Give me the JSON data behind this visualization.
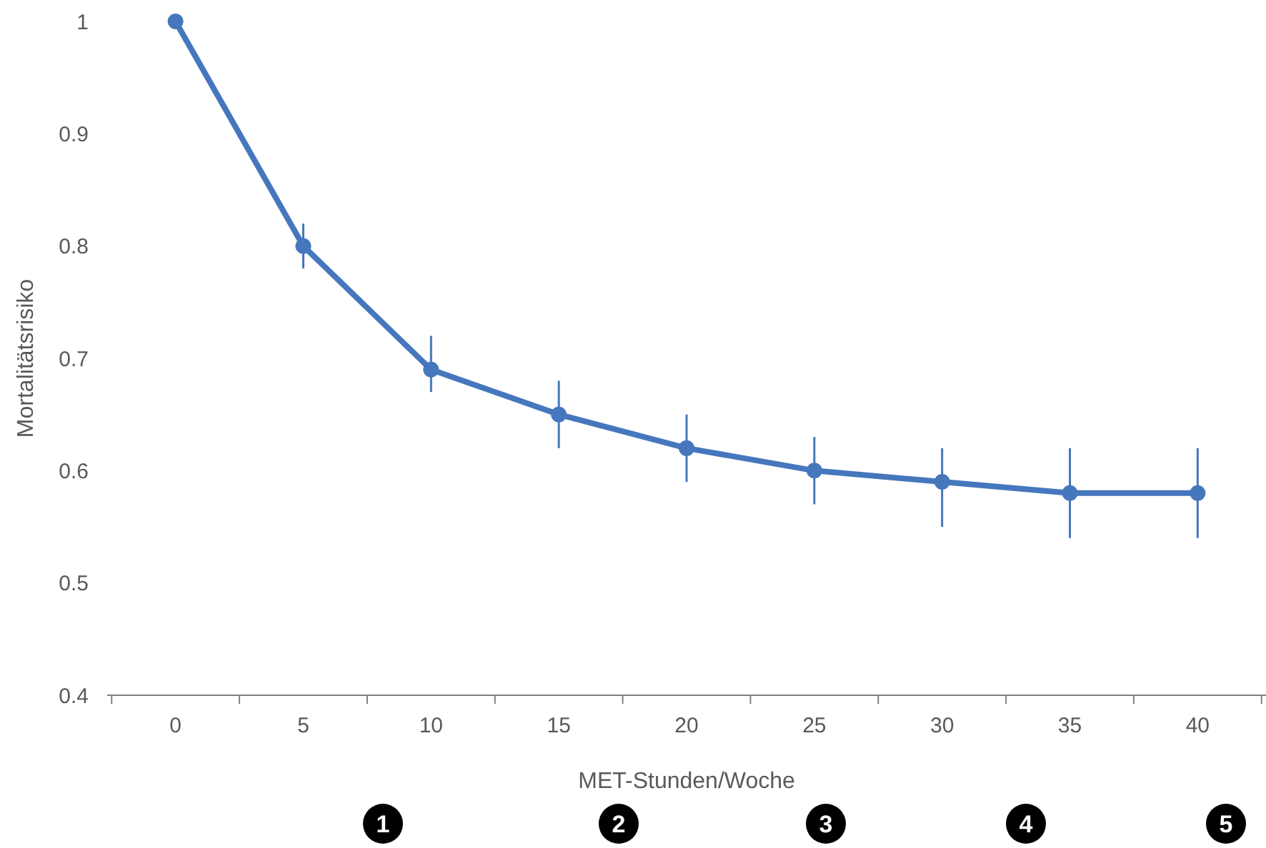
{
  "chart_data": {
    "type": "line",
    "xlabel": "MET-Stunden/Woche",
    "ylabel": "Mortalitätsrisiko",
    "categories": [
      "0",
      "5",
      "10",
      "15",
      "20",
      "25",
      "30",
      "35",
      "40"
    ],
    "series": [
      {
        "color": "#4677bd",
        "values": [
          1,
          0.8,
          0.69,
          0.65,
          0.62,
          0.6,
          0.59,
          0.58,
          0.58
        ],
        "errors": [
          null,
          [
            0.78,
            0.82
          ],
          [
            0.67,
            0.72
          ],
          [
            0.62,
            0.68
          ],
          [
            0.59,
            0.65
          ],
          [
            0.57,
            0.63
          ],
          [
            0.55,
            0.62
          ],
          [
            0.54,
            0.62
          ],
          [
            0.54,
            0.62
          ]
        ]
      }
    ],
    "ylim": [
      0.4,
      1
    ],
    "yticks": [
      0.4,
      0.5,
      0.6,
      0.7,
      0.8,
      0.9,
      1
    ],
    "grid": false,
    "marker": "circle",
    "line_style": "solid",
    "annotations": [
      "1",
      "2",
      "3",
      "4",
      "5"
    ]
  }
}
